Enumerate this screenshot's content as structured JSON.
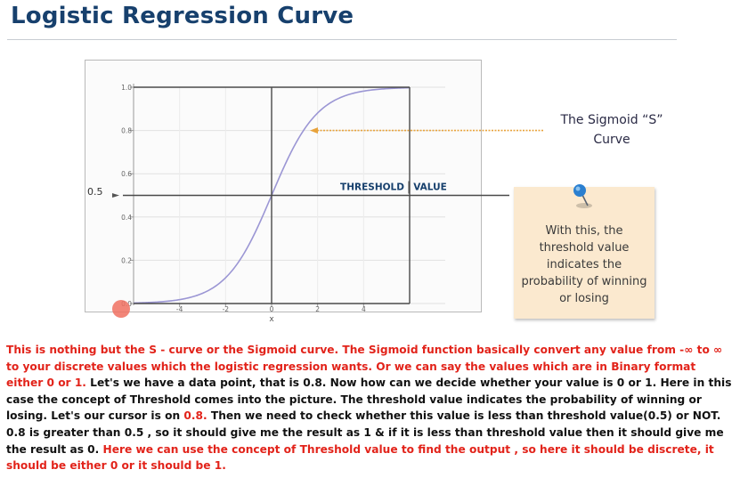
{
  "slide": {
    "title": "Logistic Regression Curve",
    "sigmoid_label_line1": "The Sigmoid “S”",
    "sigmoid_label_line2": "Curve",
    "note_lines": [
      "With this, the",
      "threshold value",
      "indicates the",
      "probability of winning",
      "or losing"
    ],
    "threshold_label_left": "THRESHOLD",
    "threshold_label_right": "VALUE",
    "y_marker_label": "0.5"
  },
  "chart_data": {
    "type": "line",
    "title": "",
    "xlabel": "x",
    "ylabel": "",
    "xlim": [
      -6,
      6
    ],
    "ylim": [
      0,
      1
    ],
    "x_ticks": [
      "-4",
      "-2",
      "0",
      "2",
      "4"
    ],
    "y_ticks": [
      "0.0",
      "0.2",
      "0.4",
      "0.6",
      "0.8",
      "1.0"
    ],
    "threshold": 0.5,
    "series": [
      {
        "name": "sigmoid",
        "function": "1/(1+exp(-x))",
        "color": "#9b96d4"
      }
    ]
  },
  "description": {
    "p1": "This is nothing but the S - curve or the Sigmoid curve. The Sigmoid function basically convert any value from -∞ to ∞ to your discrete values which the logistic regression wants. Or we can say the values which are in Binary format either 0 or 1.",
    "p2": " Let's we have a data point, that is 0.8. Now how can we decide whether your value is 0 or 1. Here in this case the concept of Threshold comes into the picture. The threshold value indicates the probability of winning or losing. Let's our cursor is on ",
    "p3": "0.8.",
    "p4": " Then we need to check whether this value is less than threshold value(0.5) or NOT. 0.8 is greater than 0.5 , so it should give me the result as 1 & if it is less than threshold value then it should give me the result as 0. ",
    "p5": "Here we can use the concept of Threshold value to find the output , so here it should be discrete, it should be either 0 or it should be 1."
  },
  "colors": {
    "title": "#17406d",
    "curve": "#9b96d4",
    "arrow": "#e8a33c",
    "note_bg": "#fbe9cf",
    "pin": "#2a7fd0",
    "text_red": "#e2231a"
  }
}
